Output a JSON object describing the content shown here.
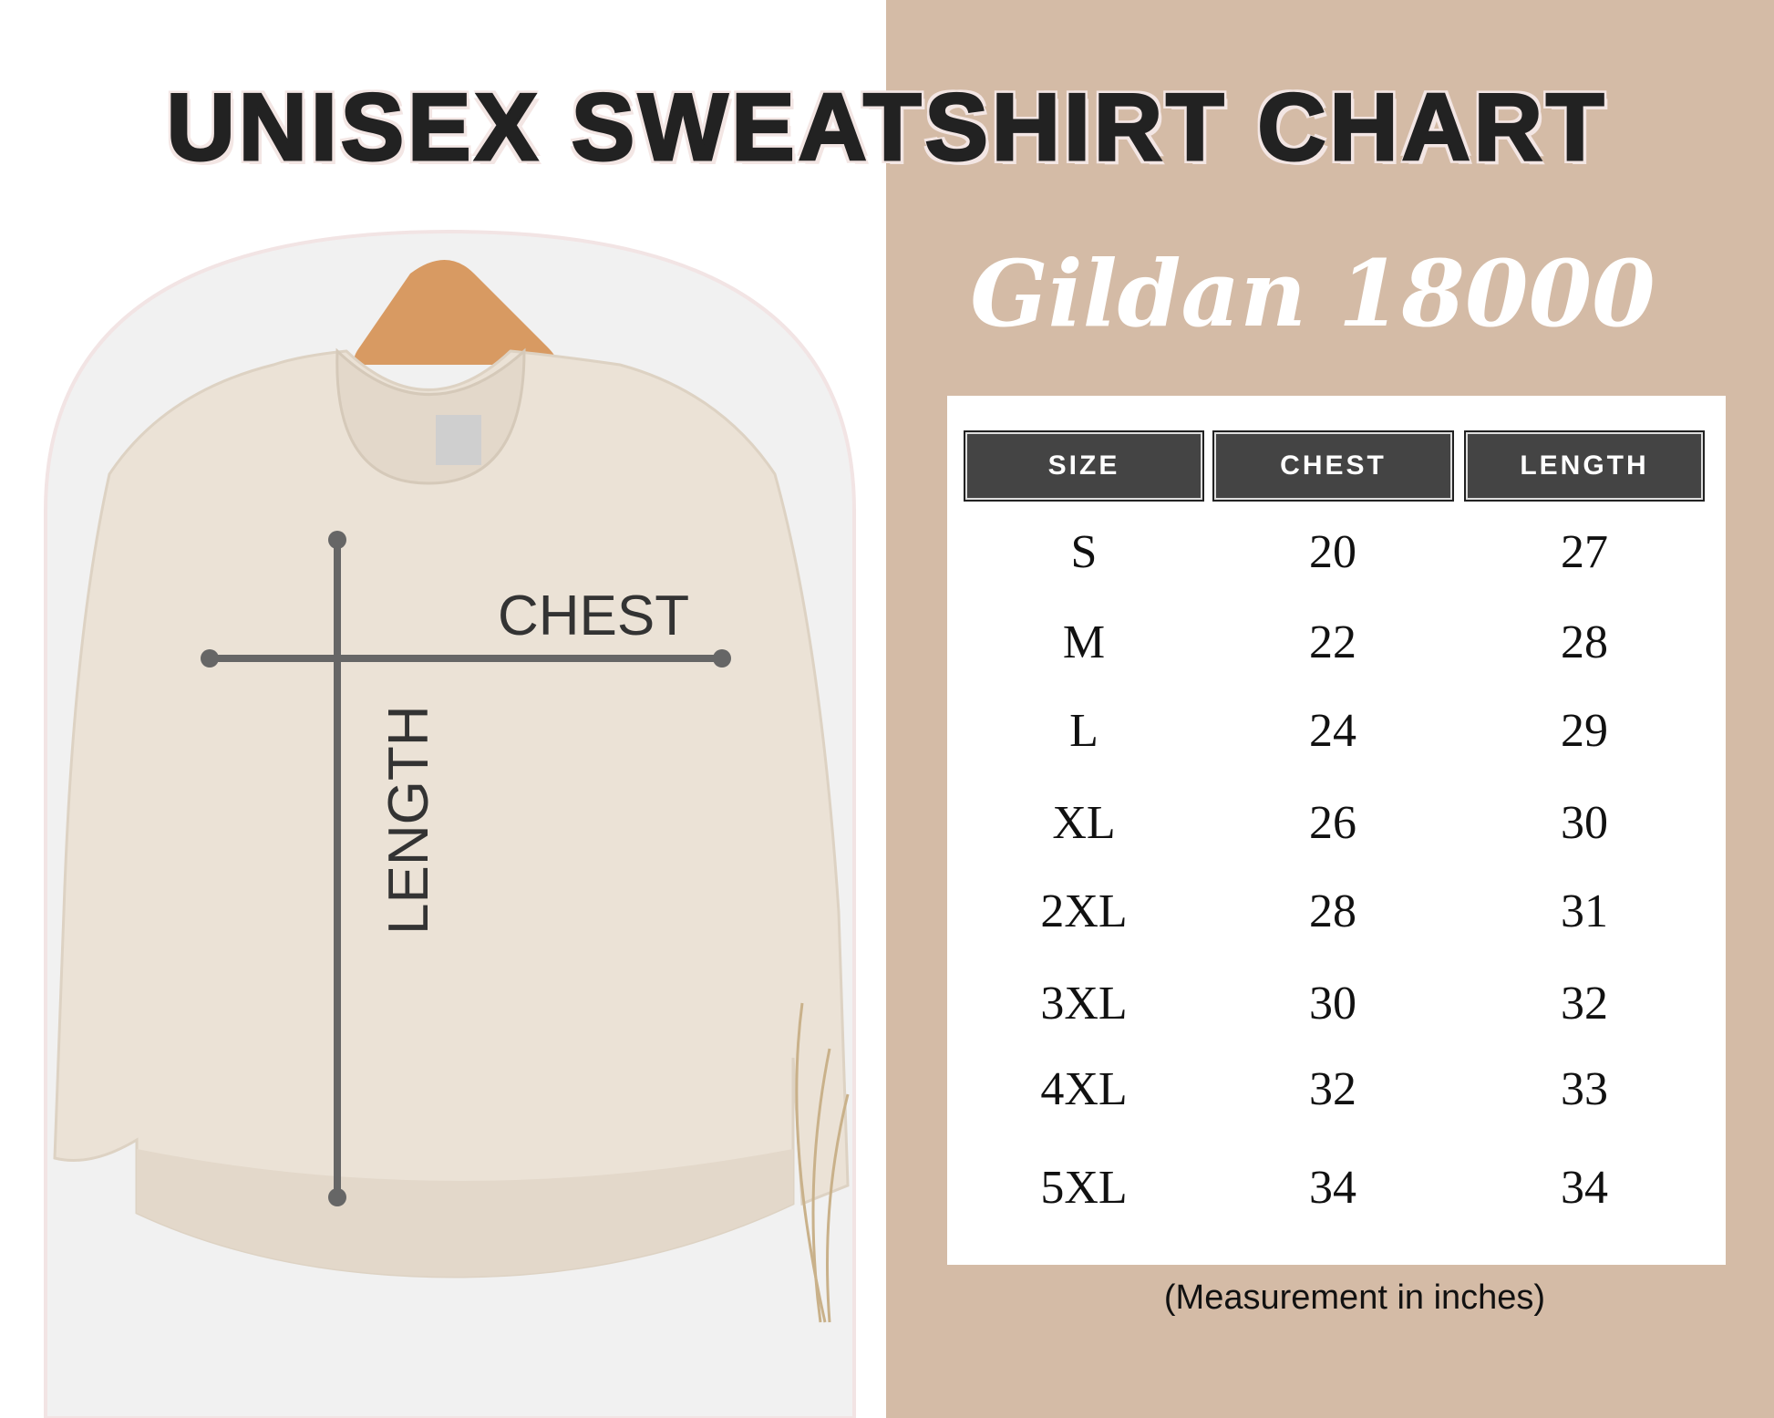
{
  "title": "UNISEX SWEATSHIRT CHART",
  "subtitle": "Gildan 18000",
  "diagram": {
    "chest_label": "CHEST",
    "length_label": "LENGTH"
  },
  "table": {
    "headers": [
      "SIZE",
      "CHEST",
      "LENGTH"
    ],
    "rows": [
      [
        "S",
        "20",
        "27"
      ],
      [
        "M",
        "22",
        "28"
      ],
      [
        "L",
        "24",
        "29"
      ],
      [
        "XL",
        "26",
        "30"
      ],
      [
        "2XL",
        "28",
        "31"
      ],
      [
        "3XL",
        "30",
        "32"
      ],
      [
        "4XL",
        "32",
        "33"
      ],
      [
        "5XL",
        "34",
        "34"
      ]
    ]
  },
  "note": "(Measurement in inches)",
  "colors": {
    "panel": "#d4bba6",
    "header": "#444444",
    "sweatshirt": "#ebe2d6"
  }
}
